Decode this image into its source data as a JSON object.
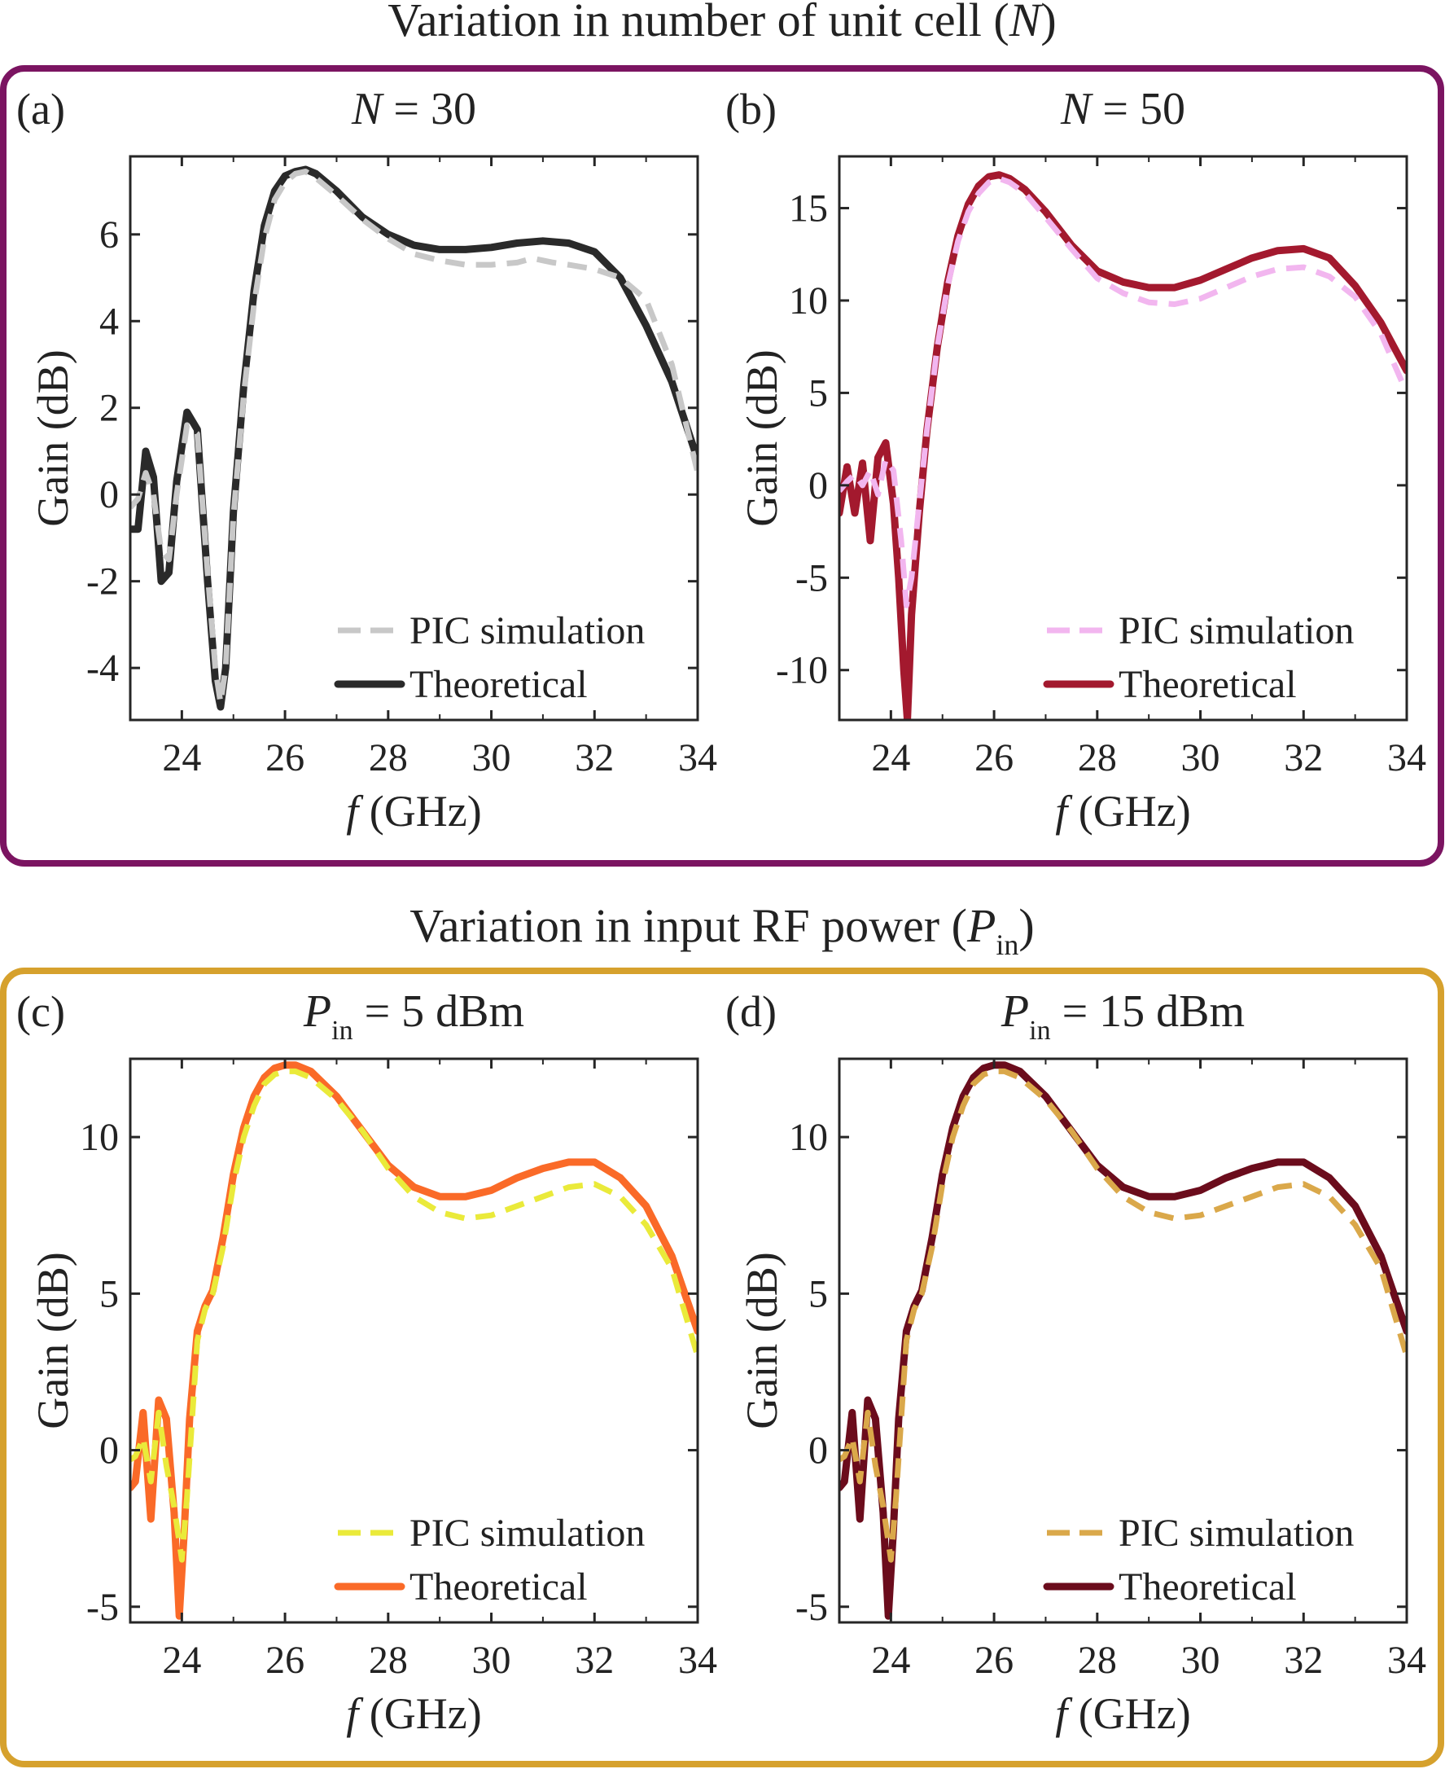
{
  "sections": [
    {
      "title": "Variation in number of unit cell (",
      "title_italic": "N",
      "title_tail": ")",
      "color": "#7b1461"
    },
    {
      "title": "Variation in input RF power (",
      "title_italic": "P",
      "title_sub": "in",
      "title_tail": ")",
      "color": "#d6a12d"
    }
  ],
  "chart_data": [
    {
      "type": "line",
      "panel_label": "(a)",
      "title_var": "N",
      "title_sub": "",
      "title_rest": " = 30",
      "xlabel_var": "f",
      "xlabel": " (GHz)",
      "ylabel": "Gain (dB)",
      "xlim": [
        23,
        34
      ],
      "ylim": [
        -5.2,
        7.8
      ],
      "xticks": [
        24,
        26,
        28,
        30,
        32,
        34
      ],
      "yticks": [
        -4,
        -2,
        0,
        2,
        4,
        6
      ],
      "legend_position": "bottom-right",
      "series": [
        {
          "name": "PIC simulation",
          "style": "dashed",
          "color": "#c8c8c8",
          "x": [
            23.0,
            23.15,
            23.3,
            23.45,
            23.6,
            23.75,
            23.9,
            24.1,
            24.3,
            24.5,
            24.65,
            24.75,
            24.85,
            25.0,
            25.2,
            25.4,
            25.6,
            25.8,
            26.0,
            26.2,
            26.4,
            26.6,
            27.0,
            27.5,
            28.0,
            28.5,
            29.0,
            29.5,
            30.0,
            30.5,
            30.8,
            31.0,
            31.2,
            31.5,
            32.0,
            32.5,
            33.0,
            33.5,
            34.0
          ],
          "y": [
            -0.3,
            -0.1,
            0.5,
            0.0,
            -1.3,
            -1.5,
            0.0,
            1.6,
            1.4,
            -1.8,
            -4.0,
            -4.8,
            -4.0,
            -0.5,
            2.3,
            4.4,
            5.9,
            6.8,
            7.2,
            7.4,
            7.45,
            7.3,
            6.9,
            6.35,
            5.9,
            5.55,
            5.4,
            5.3,
            5.3,
            5.35,
            5.45,
            5.4,
            5.35,
            5.3,
            5.2,
            5.0,
            4.5,
            3.0,
            0.5
          ]
        },
        {
          "name": "Theoretical",
          "style": "solid",
          "color": "#2a2a2a",
          "x": [
            23.0,
            23.15,
            23.3,
            23.45,
            23.6,
            23.75,
            23.9,
            24.1,
            24.3,
            24.5,
            24.65,
            24.75,
            24.85,
            25.0,
            25.2,
            25.4,
            25.6,
            25.8,
            26.0,
            26.2,
            26.4,
            26.6,
            27.0,
            27.5,
            28.0,
            28.5,
            29.0,
            29.5,
            30.0,
            30.5,
            31.0,
            31.5,
            32.0,
            32.5,
            33.0,
            33.5,
            34.0
          ],
          "y": [
            -0.8,
            -0.8,
            1.0,
            0.4,
            -2.0,
            -1.8,
            0.3,
            1.9,
            1.5,
            -2.0,
            -4.3,
            -4.9,
            -4.0,
            -0.4,
            2.5,
            4.7,
            6.2,
            7.0,
            7.35,
            7.45,
            7.5,
            7.4,
            7.0,
            6.4,
            6.0,
            5.75,
            5.65,
            5.65,
            5.7,
            5.8,
            5.85,
            5.8,
            5.6,
            5.0,
            3.9,
            2.6,
            0.8
          ]
        }
      ]
    },
    {
      "type": "line",
      "panel_label": "(b)",
      "title_var": "N",
      "title_sub": "",
      "title_rest": " = 50",
      "xlabel_var": "f",
      "xlabel": " (GHz)",
      "ylabel": "Gain (dB)",
      "xlim": [
        23,
        34
      ],
      "ylim": [
        -12.7,
        17.8
      ],
      "xticks": [
        24,
        26,
        28,
        30,
        32,
        34
      ],
      "yticks": [
        -10,
        -5,
        0,
        5,
        10,
        15
      ],
      "legend_position": "bottom-right",
      "series": [
        {
          "name": "PIC simulation",
          "style": "dashed",
          "color": "#f2b6ef",
          "x": [
            23.0,
            23.15,
            23.3,
            23.45,
            23.6,
            23.75,
            23.9,
            24.05,
            24.2,
            24.3,
            24.4,
            24.55,
            24.7,
            24.9,
            25.1,
            25.3,
            25.5,
            25.7,
            25.9,
            26.1,
            26.3,
            26.6,
            27.0,
            27.5,
            28.0,
            28.5,
            29.0,
            29.5,
            30.0,
            30.5,
            31.0,
            31.5,
            32.0,
            32.5,
            33.0,
            33.5,
            34.0
          ],
          "y": [
            -0.3,
            0.2,
            0.6,
            0.0,
            0.8,
            -0.5,
            1.4,
            0.8,
            -3.0,
            -6.5,
            -5.0,
            -1.0,
            3.0,
            7.5,
            10.8,
            13.2,
            14.8,
            15.8,
            16.4,
            16.6,
            16.4,
            15.8,
            14.5,
            12.8,
            11.2,
            10.4,
            9.9,
            9.8,
            10.1,
            10.7,
            11.3,
            11.7,
            11.8,
            11.3,
            10.2,
            8.2,
            5.0
          ]
        },
        {
          "name": "Theoretical",
          "style": "solid",
          "color": "#a3192e",
          "x": [
            23.0,
            23.15,
            23.3,
            23.45,
            23.6,
            23.75,
            23.9,
            24.05,
            24.15,
            24.25,
            24.32,
            24.4,
            24.55,
            24.7,
            24.9,
            25.1,
            25.3,
            25.5,
            25.7,
            25.9,
            26.1,
            26.3,
            26.6,
            27.0,
            27.5,
            28.0,
            28.5,
            29.0,
            29.5,
            30.0,
            30.5,
            31.0,
            31.5,
            32.0,
            32.5,
            33.0,
            33.5,
            34.0
          ],
          "y": [
            -1.5,
            1.0,
            -1.5,
            1.2,
            -3.0,
            1.5,
            2.3,
            -1.0,
            -5.0,
            -10.0,
            -12.7,
            -7.0,
            -1.5,
            3.0,
            7.5,
            11.0,
            13.5,
            15.2,
            16.2,
            16.7,
            16.8,
            16.6,
            16.0,
            14.8,
            13.0,
            11.6,
            11.0,
            10.7,
            10.7,
            11.1,
            11.7,
            12.3,
            12.7,
            12.8,
            12.3,
            10.8,
            8.8,
            6.2
          ]
        }
      ]
    },
    {
      "type": "line",
      "panel_label": "(c)",
      "title_var": "P",
      "title_sub": "in",
      "title_rest": " = 5 dBm",
      "xlabel_var": "f",
      "xlabel": " (GHz)",
      "ylabel": "Gain (dB)",
      "xlim": [
        23,
        34
      ],
      "ylim": [
        -5.5,
        12.5
      ],
      "xticks": [
        24,
        26,
        28,
        30,
        32,
        34
      ],
      "yticks": [
        -5,
        0,
        5,
        10
      ],
      "legend_position": "bottom-right",
      "series": [
        {
          "name": "PIC simulation",
          "style": "dashed",
          "color": "#eaea3a",
          "x": [
            23.0,
            23.1,
            23.25,
            23.4,
            23.55,
            23.7,
            23.85,
            24.0,
            24.1,
            24.2,
            24.3,
            24.45,
            24.6,
            24.8,
            25.0,
            25.2,
            25.4,
            25.6,
            25.8,
            26.0,
            26.2,
            26.5,
            27.0,
            27.5,
            28.0,
            28.5,
            29.0,
            29.5,
            30.0,
            30.5,
            31.0,
            31.5,
            32.0,
            32.5,
            33.0,
            33.5,
            34.0
          ],
          "y": [
            -0.3,
            -0.2,
            0.4,
            -1.0,
            1.2,
            -0.5,
            -1.8,
            -3.5,
            -1.5,
            1.0,
            3.5,
            4.5,
            5.0,
            6.5,
            8.5,
            10.0,
            11.0,
            11.7,
            12.0,
            12.1,
            12.1,
            11.9,
            11.2,
            10.2,
            9.0,
            8.1,
            7.6,
            7.4,
            7.5,
            7.8,
            8.1,
            8.4,
            8.5,
            8.1,
            7.2,
            5.8,
            3.0
          ]
        },
        {
          "name": "Theoretical",
          "style": "solid",
          "color": "#fa6a28",
          "x": [
            23.0,
            23.1,
            23.25,
            23.4,
            23.55,
            23.7,
            23.85,
            23.95,
            24.05,
            24.15,
            24.3,
            24.45,
            24.6,
            24.8,
            25.0,
            25.2,
            25.4,
            25.6,
            25.8,
            26.0,
            26.2,
            26.5,
            27.0,
            27.5,
            28.0,
            28.5,
            29.0,
            29.5,
            30.0,
            30.5,
            31.0,
            31.5,
            32.0,
            32.5,
            33.0,
            33.5,
            34.0
          ],
          "y": [
            -1.2,
            -1.0,
            1.2,
            -2.2,
            1.6,
            1.0,
            -2.0,
            -5.3,
            -2.5,
            1.0,
            3.8,
            4.6,
            5.1,
            6.8,
            8.8,
            10.3,
            11.3,
            11.9,
            12.2,
            12.3,
            12.3,
            12.1,
            11.3,
            10.2,
            9.1,
            8.4,
            8.1,
            8.1,
            8.3,
            8.7,
            9.0,
            9.2,
            9.2,
            8.7,
            7.8,
            6.2,
            3.8
          ]
        }
      ]
    },
    {
      "type": "line",
      "panel_label": "(d)",
      "title_var": "P",
      "title_sub": "in",
      "title_rest": " = 15 dBm",
      "xlabel_var": "f",
      "xlabel": " (GHz)",
      "ylabel": "Gain (dB)",
      "xlim": [
        23,
        34
      ],
      "ylim": [
        -5.5,
        12.5
      ],
      "xticks": [
        24,
        26,
        28,
        30,
        32,
        34
      ],
      "yticks": [
        -5,
        0,
        5,
        10
      ],
      "legend_position": "bottom-right",
      "series": [
        {
          "name": "PIC simulation",
          "style": "dashed",
          "color": "#daa84a",
          "x": [
            23.0,
            23.1,
            23.25,
            23.4,
            23.55,
            23.7,
            23.85,
            24.0,
            24.1,
            24.2,
            24.3,
            24.45,
            24.6,
            24.8,
            25.0,
            25.2,
            25.4,
            25.6,
            25.8,
            26.0,
            26.2,
            26.5,
            27.0,
            27.5,
            28.0,
            28.5,
            29.0,
            29.5,
            30.0,
            30.5,
            31.0,
            31.5,
            32.0,
            32.5,
            33.0,
            33.5,
            34.0
          ],
          "y": [
            -0.3,
            -0.2,
            0.4,
            -1.0,
            1.2,
            -0.5,
            -1.8,
            -3.5,
            -1.5,
            1.0,
            3.5,
            4.5,
            5.0,
            6.5,
            8.5,
            10.0,
            11.0,
            11.7,
            12.0,
            12.1,
            12.1,
            11.9,
            11.2,
            10.2,
            9.0,
            8.1,
            7.6,
            7.4,
            7.5,
            7.8,
            8.1,
            8.4,
            8.5,
            8.1,
            7.2,
            5.8,
            3.0
          ]
        },
        {
          "name": "Theoretical",
          "style": "solid",
          "color": "#6b0c1c",
          "x": [
            23.0,
            23.1,
            23.25,
            23.4,
            23.55,
            23.7,
            23.85,
            23.95,
            24.05,
            24.15,
            24.3,
            24.45,
            24.6,
            24.8,
            25.0,
            25.2,
            25.4,
            25.6,
            25.8,
            26.0,
            26.2,
            26.5,
            27.0,
            27.5,
            28.0,
            28.5,
            29.0,
            29.5,
            30.0,
            30.5,
            31.0,
            31.5,
            32.0,
            32.5,
            33.0,
            33.5,
            34.0
          ],
          "y": [
            -1.2,
            -1.0,
            1.2,
            -2.2,
            1.6,
            1.0,
            -2.0,
            -5.3,
            -2.5,
            1.0,
            3.8,
            4.6,
            5.1,
            6.8,
            8.8,
            10.3,
            11.3,
            11.9,
            12.2,
            12.3,
            12.3,
            12.1,
            11.3,
            10.2,
            9.1,
            8.4,
            8.1,
            8.1,
            8.3,
            8.7,
            9.0,
            9.2,
            9.2,
            8.7,
            7.8,
            6.2,
            3.8
          ]
        }
      ]
    }
  ]
}
